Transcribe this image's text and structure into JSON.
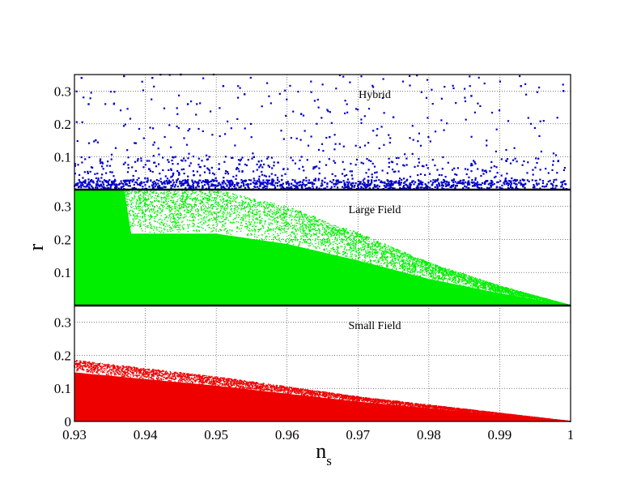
{
  "chart_data": {
    "type": "scatter",
    "xlabel": "n",
    "xlabel_subscript": "s",
    "ylabel": "r",
    "xlim": [
      0.93,
      1.0
    ],
    "x_ticks": [
      "0.93",
      "0.94",
      "0.95",
      "0.96",
      "0.97",
      "0.98",
      "0.99",
      "1"
    ],
    "grid": true,
    "panels": [
      {
        "name": "Hybrid",
        "color": "#0000cc",
        "ylim": [
          0,
          0.35
        ],
        "y_ticks": [
          "0.3",
          "0.2",
          "0.1"
        ],
        "distribution": "sparse points across full n_s range, densest near r = 0, density increasing toward n_s = 1",
        "sample_points": [
          [
            0.931,
            0.34
          ],
          [
            0.932,
            0.26
          ],
          [
            0.933,
            0.15
          ],
          [
            0.937,
            0.345
          ],
          [
            0.941,
            0.34
          ],
          [
            0.945,
            0.35
          ],
          [
            0.946,
            0.26
          ],
          [
            0.951,
            0.315
          ],
          [
            0.954,
            0.29
          ],
          [
            0.962,
            0.23
          ],
          [
            0.966,
            0.16
          ],
          [
            0.975,
            0.22
          ],
          [
            0.986,
            0.285
          ],
          [
            0.993,
            0.315
          ],
          [
            0.999,
            0.3
          ]
        ]
      },
      {
        "name": "Large Field",
        "color": "#00ee00",
        "ylim": [
          0,
          0.35
        ],
        "y_ticks": [
          "0.3",
          "0.2",
          "0.1"
        ],
        "distribution": "dense region filling r up to 0.35 near n_s = 0.93, upper envelope decreasing to r ≈ 0 at n_s = 1",
        "envelope": [
          [
            0.93,
            0.35
          ],
          [
            0.95,
            0.35
          ],
          [
            0.96,
            0.3
          ],
          [
            0.97,
            0.22
          ],
          [
            0.98,
            0.13
          ],
          [
            0.99,
            0.06
          ],
          [
            1.0,
            0.0
          ]
        ]
      },
      {
        "name": "Small Field",
        "color": "#ee0000",
        "ylim": [
          0,
          0.35
        ],
        "y_ticks": [
          "0.3",
          "0.2",
          "0.1",
          "0"
        ],
        "distribution": "dense wedge below a linear upper envelope from r ≈ 0.185 at n_s = 0.93 to r = 0 at n_s = 1",
        "envelope": [
          [
            0.93,
            0.185
          ],
          [
            0.95,
            0.135
          ],
          [
            0.97,
            0.075
          ],
          [
            0.99,
            0.025
          ],
          [
            1.0,
            0.0
          ]
        ]
      }
    ]
  }
}
